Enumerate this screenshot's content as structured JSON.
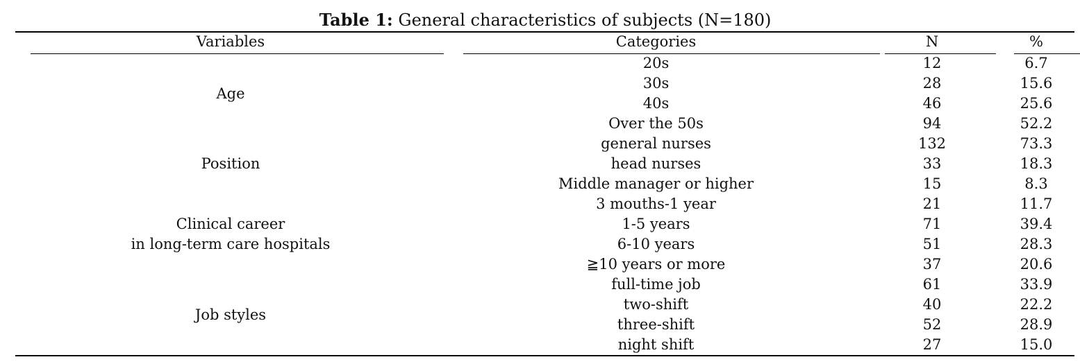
{
  "caption": {
    "label": "Table 1:",
    "text": "General characteristics of subjects (N=180)"
  },
  "table": {
    "headers": {
      "variables": "Variables",
      "categories": "Categories",
      "n": "N",
      "pct": "%"
    },
    "groups": [
      {
        "label_lines": [
          "Age"
        ],
        "rows": [
          {
            "category": "20s",
            "n": "12",
            "pct": "6.7"
          },
          {
            "category": "30s",
            "n": "28",
            "pct": "15.6"
          },
          {
            "category": "40s",
            "n": "46",
            "pct": "25.6"
          },
          {
            "category": "Over the 50s",
            "n": "94",
            "pct": "52.2"
          }
        ]
      },
      {
        "label_lines": [
          "Position"
        ],
        "rows": [
          {
            "category": "general nurses",
            "n": "132",
            "pct": "73.3"
          },
          {
            "category": "head nurses",
            "n": "33",
            "pct": "18.3"
          },
          {
            "category": "Middle manager or higher",
            "n": "15",
            "pct": "8.3"
          }
        ]
      },
      {
        "label_lines": [
          "Clinical career",
          "in long-term care hospitals"
        ],
        "rows": [
          {
            "category": "3 mouths-1 year",
            "n": "21",
            "pct": "11.7"
          },
          {
            "category": "1-5 years",
            "n": "71",
            "pct": "39.4"
          },
          {
            "category": "6-10 years",
            "n": "51",
            "pct": "28.3"
          },
          {
            "category": "≧10 years or more",
            "n": "37",
            "pct": "20.6"
          }
        ]
      },
      {
        "label_lines": [
          "Job styles"
        ],
        "rows": [
          {
            "category": "full-time job",
            "n": "61",
            "pct": "33.9"
          },
          {
            "category": "two-shift",
            "n": "40",
            "pct": "22.2"
          },
          {
            "category": "three-shift",
            "n": "52",
            "pct": "28.9"
          },
          {
            "category": "night shift",
            "n": "27",
            "pct": "15.0"
          }
        ]
      }
    ]
  }
}
